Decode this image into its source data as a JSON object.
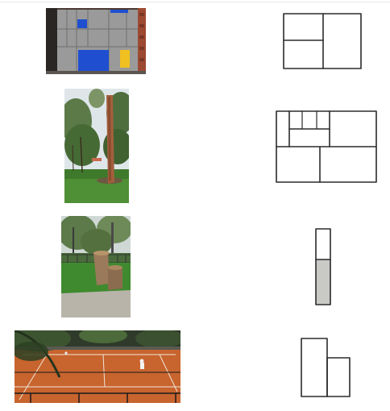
{
  "rows": [
    {
      "photo": "building-facade-colored-panels",
      "sketch": "three-panel-layout-sketch"
    },
    {
      "photo": "park-with-tall-tree",
      "sketch": "multi-panel-grid-sketch"
    },
    {
      "photo": "park-with-tree-stumps",
      "sketch": "vertical-bar-half-filled-sketch",
      "fill_fraction": 0.58
    },
    {
      "photo": "clay-tennis-court",
      "sketch": "two-column-step-sketch"
    }
  ],
  "colors": {
    "facade_blue": "#1f4fd0",
    "facade_yellow": "#f0c020",
    "facade_grey": "#9a9a9a",
    "clay": "#c8642e",
    "grass": "#3f7a2c",
    "sketch_fill": "#c9c9c6",
    "sketch_stroke": "#2b2b2b"
  }
}
